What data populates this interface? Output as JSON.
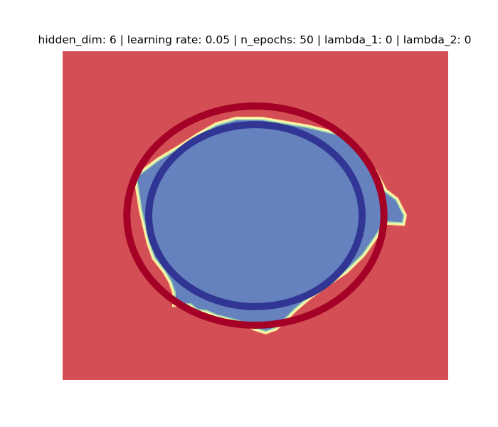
{
  "chart_data": {
    "type": "heatmap",
    "title": "hidden_dim: 6 | learning rate: 0.05 | n_epochs: 50 | lambda_1: 0 | lambda_2: 0",
    "xlim": [
      -1.5,
      1.5
    ],
    "ylim": [
      -1.5,
      1.5
    ],
    "axes_visible": false,
    "grid": false,
    "background_class_color": "#d44e55",
    "decision_region": {
      "class_color": "#6582be",
      "boundary_fringe_colors": [
        "#fee08b",
        "#fefebe",
        "#abdda4"
      ],
      "polygon": [
        [
          -0.92,
          0.35
        ],
        [
          -0.75,
          0.5
        ],
        [
          -0.58,
          0.62
        ],
        [
          -0.45,
          0.72
        ],
        [
          -0.3,
          0.82
        ],
        [
          -0.15,
          0.87
        ],
        [
          0.05,
          0.87
        ],
        [
          0.4,
          0.8
        ],
        [
          0.65,
          0.73
        ],
        [
          0.82,
          0.57
        ],
        [
          0.92,
          0.4
        ],
        [
          1.0,
          0.22
        ],
        [
          1.09,
          0.14
        ],
        [
          1.15,
          0.0
        ],
        [
          1.14,
          -0.06
        ],
        [
          1.0,
          -0.05
        ],
        [
          0.92,
          -0.2
        ],
        [
          0.83,
          -0.35
        ],
        [
          0.7,
          -0.5
        ],
        [
          0.55,
          -0.62
        ],
        [
          0.4,
          -0.75
        ],
        [
          0.3,
          -0.85
        ],
        [
          0.2,
          -0.97
        ],
        [
          0.15,
          -1.02
        ],
        [
          0.08,
          -1.05
        ],
        [
          0.0,
          -1.02
        ],
        [
          -0.08,
          -0.97
        ],
        [
          -0.2,
          -0.93
        ],
        [
          -0.3,
          -0.9
        ],
        [
          -0.38,
          -0.86
        ],
        [
          -0.45,
          -0.85
        ],
        [
          -0.5,
          -0.8
        ],
        [
          -0.62,
          -0.8
        ],
        [
          -0.62,
          -0.7
        ],
        [
          -0.65,
          -0.6
        ],
        [
          -0.7,
          -0.5
        ],
        [
          -0.78,
          -0.38
        ],
        [
          -0.82,
          -0.25
        ],
        [
          -0.85,
          -0.1
        ],
        [
          -0.88,
          0.05
        ],
        [
          -0.9,
          0.2
        ]
      ]
    },
    "circles": [
      {
        "cx": 0.0,
        "cy": 0.0,
        "r": 0.83,
        "color": "#313695"
      },
      {
        "cx": 0.0,
        "cy": 0.0,
        "r": 1.0,
        "color": "#a50026"
      }
    ]
  }
}
